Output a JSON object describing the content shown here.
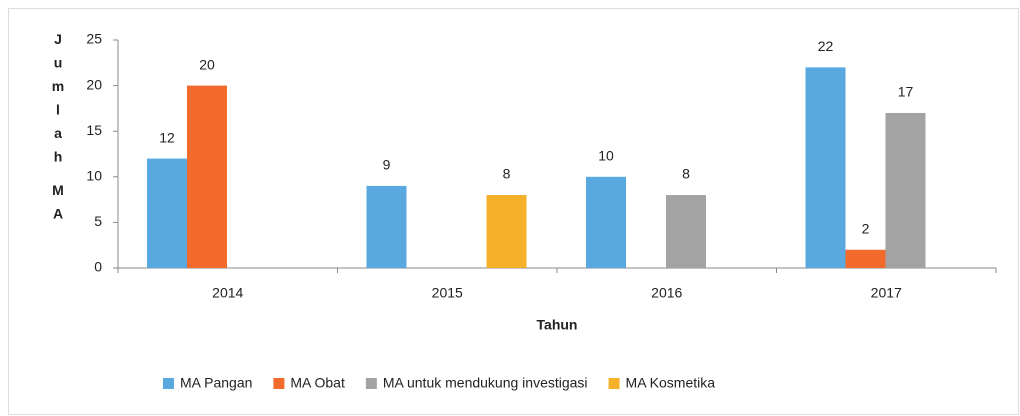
{
  "chart_data": {
    "type": "bar",
    "categories": [
      "2014",
      "2015",
      "2016",
      "2017"
    ],
    "series": [
      {
        "name": "MA Pangan",
        "color": "#5aa8e0",
        "values": [
          12,
          9,
          10,
          22
        ]
      },
      {
        "name": "MA Obat",
        "color": "#f26b2c",
        "values": [
          20,
          null,
          null,
          2
        ]
      },
      {
        "name": "MA untuk mendukung investigasi",
        "color": "#a3a3a3",
        "values": [
          null,
          null,
          8,
          17
        ]
      },
      {
        "name": "MA Kosmetika",
        "color": "#f6b12a",
        "values": [
          null,
          8,
          null,
          null
        ]
      }
    ],
    "x_label": "Tahun",
    "y_label": "Jumlah MA",
    "ylim": [
      0,
      25
    ],
    "yticks": [
      0,
      5,
      10,
      15,
      20,
      25
    ],
    "grid": false,
    "legend": "bottom"
  }
}
